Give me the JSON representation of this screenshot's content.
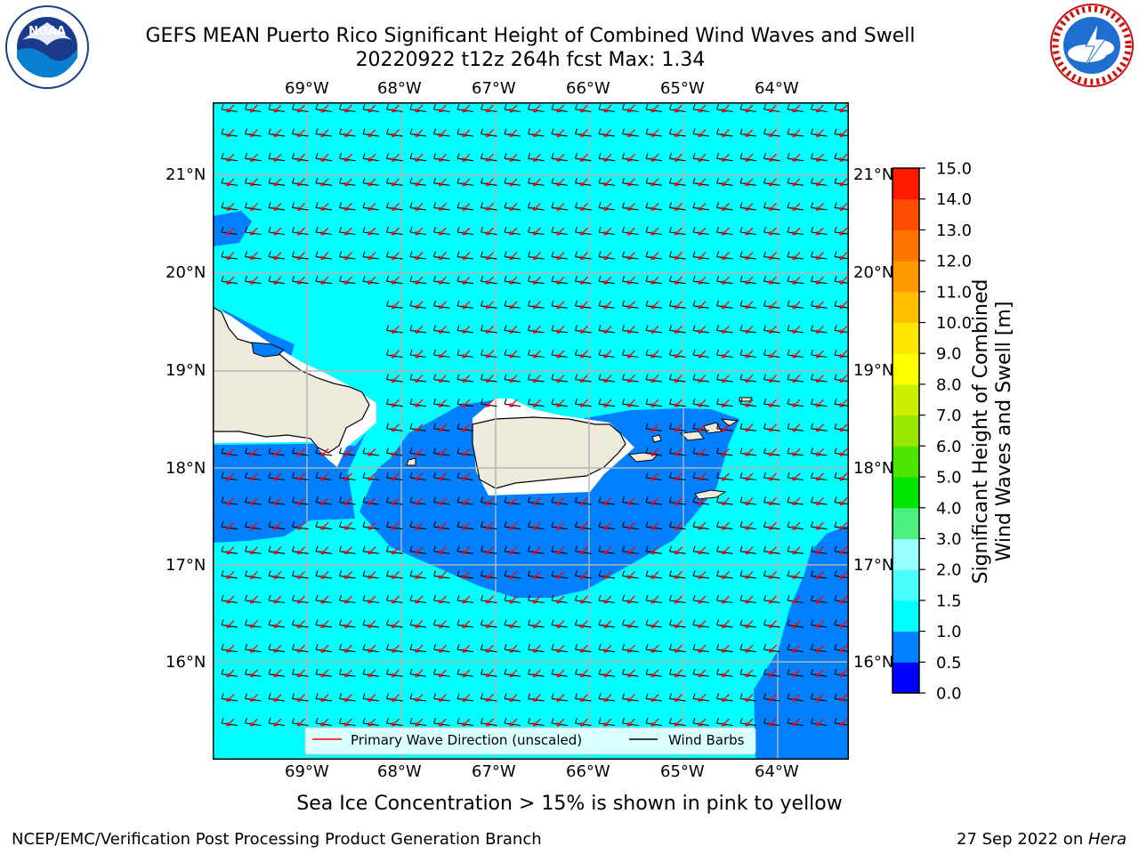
{
  "title": {
    "line1": "GEFS MEAN Puerto Rico Significant Height of Combined Wind Waves and Swell",
    "line2": "20220922 t12z 264h fcst   Max: 1.34"
  },
  "logos": {
    "left_icon": "noaa-logo-icon",
    "left_text": "NOAA",
    "left_ring": "NATIONAL OCEANIC AND ATMOSPHERIC ADMINISTRATION · U.S. DEPARTMENT OF COMMERCE",
    "right_icon": "nws-logo-icon",
    "right_ring": "NATIONAL WEATHER SERVICE"
  },
  "map": {
    "lon_labels": [
      "69°W",
      "68°W",
      "67°W",
      "66°W",
      "65°W",
      "64°W"
    ],
    "lat_labels": [
      "21°N",
      "20°N",
      "19°N",
      "18°N",
      "17°N",
      "16°N"
    ],
    "colors": {
      "ocean_main": "#00ffff",
      "ocean_low": "#0080ff",
      "land": "#efebdc",
      "coast": "#000000",
      "grid": "#b4b4b4",
      "wave_arrow": "#ff0000",
      "barb": "#000000"
    }
  },
  "legend": {
    "wave_label": "Primary Wave Direction (unscaled)",
    "barb_label": "Wind Barbs"
  },
  "colorbar": {
    "label_line1": "Significant Height of Combined",
    "label_line2": "Wind Waves and Swell [m]",
    "ticks": [
      "15.0",
      "14.0",
      "13.0",
      "12.0",
      "11.0",
      "10.0",
      "9.0",
      "8.0",
      "7.0",
      "6.0",
      "5.0",
      "4.0",
      "3.0",
      "2.0",
      "1.5",
      "1.0",
      "0.5",
      "0.0"
    ],
    "bands": [
      "#0000ff",
      "#0080ff",
      "#00ffff",
      "#4cffff",
      "#99ffff",
      "#4cf07d",
      "#00e600",
      "#4de600",
      "#99e600",
      "#ccee00",
      "#ffff00",
      "#ffe600",
      "#ffbf00",
      "#ff9900",
      "#ff7300",
      "#ff4d00",
      "#ff1a00"
    ]
  },
  "caption": "Sea Ice Concentration > 15% is shown in pink to yellow",
  "footer": {
    "left": "NCEP/EMC/Verification Post Processing Product Generation Branch",
    "date": "27 Sep 2022 on ",
    "machine": "Hera"
  }
}
